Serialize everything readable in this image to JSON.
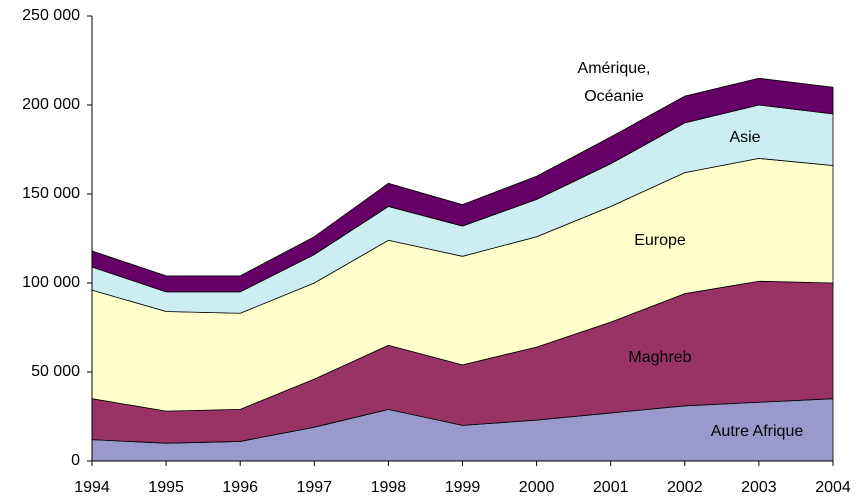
{
  "chart_data": {
    "type": "stacked_area",
    "categories": [
      "1994",
      "1995",
      "1996",
      "1997",
      "1998",
      "1999",
      "2000",
      "2001",
      "2002",
      "2003",
      "2004"
    ],
    "series": [
      {
        "name": "Autre Afrique",
        "color": "#9999cc",
        "values": [
          12000,
          10000,
          11000,
          19000,
          29000,
          20000,
          23000,
          27000,
          31000,
          33000,
          35000
        ]
      },
      {
        "name": "Maghreb",
        "color": "#993366",
        "values": [
          23000,
          18000,
          18000,
          27000,
          36000,
          34000,
          41000,
          51000,
          63000,
          68000,
          65000
        ]
      },
      {
        "name": "Europe",
        "color": "#ffffcc",
        "values": [
          61000,
          56000,
          54000,
          54000,
          59000,
          61000,
          62000,
          65000,
          68000,
          69000,
          66000
        ]
      },
      {
        "name": "Asie",
        "color": "#cceef2",
        "values": [
          13000,
          11000,
          12000,
          16000,
          19000,
          17000,
          21000,
          24000,
          28000,
          30000,
          29000
        ]
      },
      {
        "name": "Amérique, Océanie",
        "color": "#660066",
        "values": [
          9000,
          9000,
          9000,
          10000,
          13000,
          12000,
          13000,
          15000,
          15000,
          15000,
          15000
        ]
      }
    ],
    "ylim": [
      0,
      250000
    ],
    "yticks": [
      0,
      {
        "value": 50000,
        "label": "50 000"
      },
      {
        "value": 100000,
        "label": "100 000"
      },
      {
        "value": 150000,
        "label": "150 000"
      },
      {
        "value": 200000,
        "label": "200 000"
      },
      {
        "value": 250000,
        "label": "250 000"
      }
    ],
    "grid": false
  }
}
